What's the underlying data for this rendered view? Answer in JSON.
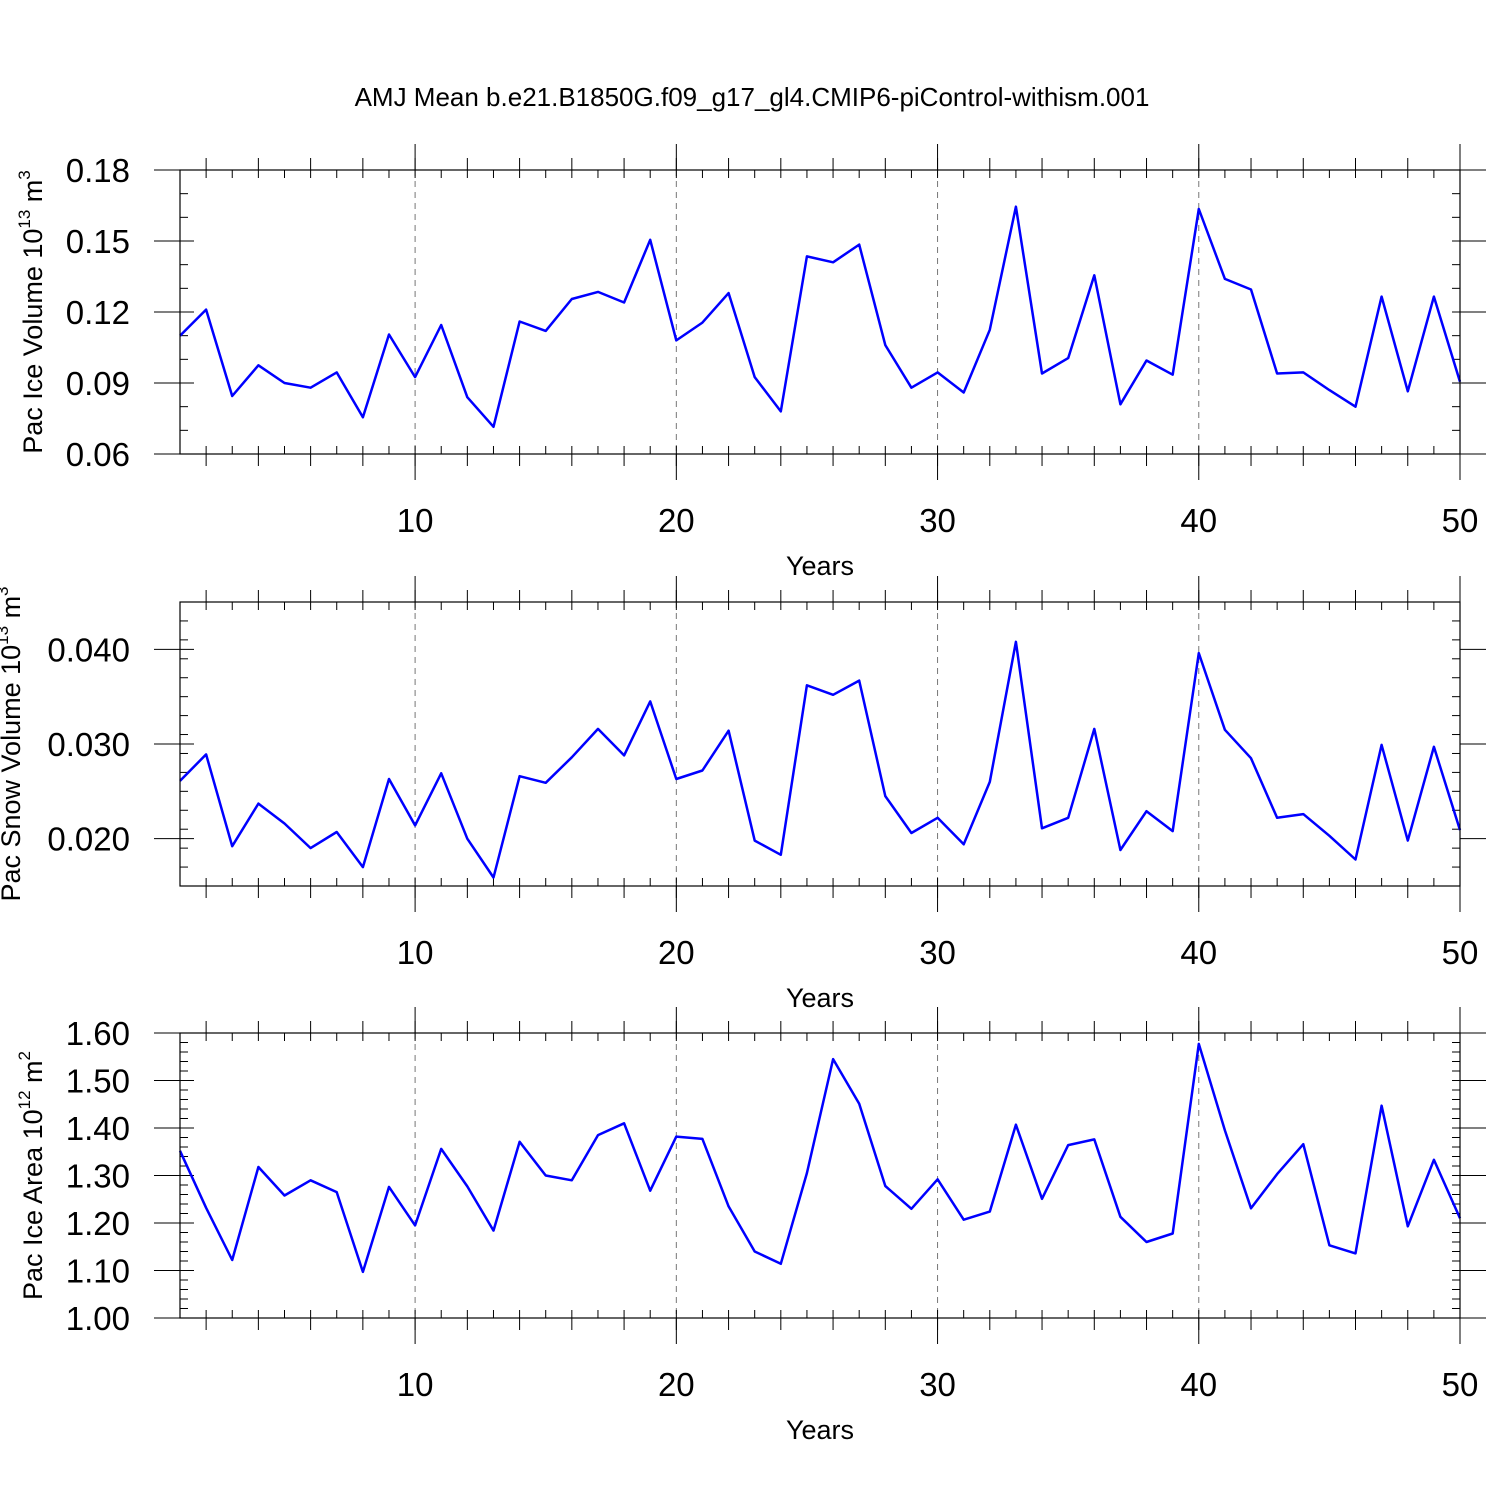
{
  "title": "AMJ Mean b.e21.B1850G.f09_g17_gl4.CMIP6-piControl-withism.001",
  "colors": {
    "line": "#0000ff",
    "frame": "#000000",
    "grid": "#777777"
  },
  "chart_data": [
    {
      "type": "line",
      "ylabel": {
        "text": "Pac Ice Volume 10",
        "sup": "13",
        "unit": " m",
        "unit_sup": "3"
      },
      "xlabel": "Years",
      "xlim": [
        1,
        50
      ],
      "ylim": [
        0.06,
        0.18
      ],
      "xticks": [
        10,
        20,
        30,
        40,
        50
      ],
      "yticks": [
        0.06,
        0.09,
        0.12,
        0.15,
        0.18
      ],
      "ytick_labels": [
        "0.06",
        "0.09",
        "0.12",
        "0.15",
        "0.18"
      ],
      "grid_x": [
        10,
        20,
        30,
        40
      ],
      "series": [
        {
          "x": [
            1,
            2,
            3,
            4,
            5,
            6,
            7,
            8,
            9,
            10,
            11,
            12,
            13,
            14,
            15,
            16,
            17,
            18,
            19,
            20,
            21,
            22,
            23,
            24,
            25,
            26,
            27,
            28,
            29,
            30,
            31,
            32,
            33,
            34,
            35,
            36,
            37,
            38,
            39,
            40,
            41,
            42,
            43,
            44,
            45,
            46,
            47,
            48,
            49,
            50
          ],
          "values": [
            0.11,
            0.121,
            0.0845,
            0.0975,
            0.09,
            0.088,
            0.0945,
            0.0755,
            0.1105,
            0.0925,
            0.1145,
            0.084,
            0.0715,
            0.116,
            0.112,
            0.1255,
            0.1285,
            0.124,
            0.1505,
            0.108,
            0.1155,
            0.128,
            0.0925,
            0.078,
            0.1435,
            0.141,
            0.1485,
            0.106,
            0.088,
            0.0945,
            0.086,
            0.1125,
            0.1645,
            0.094,
            0.1005,
            0.1355,
            0.081,
            0.0995,
            0.0935,
            0.1635,
            0.134,
            0.1295,
            0.094,
            0.0945,
            0.087,
            0.08,
            0.1265,
            0.0865,
            0.1265,
            0.0905
          ]
        }
      ]
    },
    {
      "type": "line",
      "ylabel": {
        "text": "Pac Snow Volume 10",
        "sup": "13",
        "unit": " m",
        "unit_sup": "3"
      },
      "xlabel": "Years",
      "xlim": [
        1,
        50
      ],
      "ylim": [
        0.015,
        0.045
      ],
      "xticks": [
        10,
        20,
        30,
        40,
        50
      ],
      "yticks": [
        0.02,
        0.03,
        0.04
      ],
      "ytick_labels": [
        "0.020",
        "0.030",
        "0.040"
      ],
      "grid_x": [
        10,
        20,
        30,
        40
      ],
      "series": [
        {
          "x": [
            1,
            2,
            3,
            4,
            5,
            6,
            7,
            8,
            9,
            10,
            11,
            12,
            13,
            14,
            15,
            16,
            17,
            18,
            19,
            20,
            21,
            22,
            23,
            24,
            25,
            26,
            27,
            28,
            29,
            30,
            31,
            32,
            33,
            34,
            35,
            36,
            37,
            38,
            39,
            40,
            41,
            42,
            43,
            44,
            45,
            46,
            47,
            48,
            49,
            50
          ],
          "values": [
            0.0261,
            0.0289,
            0.0192,
            0.0237,
            0.0216,
            0.019,
            0.0207,
            0.017,
            0.0263,
            0.0214,
            0.0269,
            0.02,
            0.0159,
            0.0266,
            0.0259,
            0.0286,
            0.0316,
            0.0288,
            0.0345,
            0.0263,
            0.0272,
            0.0314,
            0.0198,
            0.0183,
            0.0362,
            0.0352,
            0.0367,
            0.0245,
            0.0206,
            0.0222,
            0.0194,
            0.026,
            0.0408,
            0.0211,
            0.0222,
            0.0316,
            0.0188,
            0.0229,
            0.0208,
            0.0396,
            0.0315,
            0.0285,
            0.0222,
            0.0226,
            0.0203,
            0.0178,
            0.0299,
            0.0198,
            0.0297,
            0.0209
          ]
        }
      ]
    },
    {
      "type": "line",
      "ylabel": {
        "text": "Pac Ice Area 10",
        "sup": "12",
        "unit": " m",
        "unit_sup": "2"
      },
      "xlabel": "Years",
      "xlim": [
        1,
        50
      ],
      "ylim": [
        1.0,
        1.6
      ],
      "xticks": [
        10,
        20,
        30,
        40,
        50
      ],
      "yticks": [
        1.0,
        1.1,
        1.2,
        1.3,
        1.4,
        1.5,
        1.6
      ],
      "ytick_labels": [
        "1.00",
        "1.10",
        "1.20",
        "1.30",
        "1.40",
        "1.50",
        "1.60"
      ],
      "grid_x": [
        10,
        20,
        30,
        40
      ],
      "series": [
        {
          "x": [
            1,
            2,
            3,
            4,
            5,
            6,
            7,
            8,
            9,
            10,
            11,
            12,
            13,
            14,
            15,
            16,
            17,
            18,
            19,
            20,
            21,
            22,
            23,
            24,
            25,
            26,
            27,
            28,
            29,
            30,
            31,
            32,
            33,
            34,
            35,
            36,
            37,
            38,
            39,
            40,
            41,
            42,
            43,
            44,
            45,
            46,
            47,
            48,
            49,
            50
          ],
          "values": [
            1.352,
            1.232,
            1.122,
            1.318,
            1.258,
            1.29,
            1.265,
            1.097,
            1.276,
            1.195,
            1.356,
            1.277,
            1.184,
            1.371,
            1.3,
            1.29,
            1.385,
            1.41,
            1.268,
            1.382,
            1.377,
            1.235,
            1.14,
            1.114,
            1.305,
            1.545,
            1.451,
            1.278,
            1.23,
            1.292,
            1.207,
            1.224,
            1.407,
            1.251,
            1.364,
            1.376,
            1.213,
            1.16,
            1.178,
            1.577,
            1.395,
            1.231,
            1.303,
            1.366,
            1.153,
            1.136,
            1.447,
            1.193,
            1.333,
            1.21
          ]
        }
      ]
    }
  ]
}
